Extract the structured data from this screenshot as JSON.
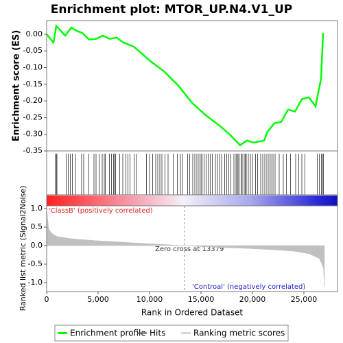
{
  "chart_data": {
    "type": "line",
    "title": "Enrichment plot: MTOR_UP.N4.V1_UP",
    "xlabel": "Rank in Ordered Dataset",
    "ylabel": "Enrichment score (ES)",
    "y2label": "Ranked list metric (Signal2Noise)",
    "xlim": [
      0,
      28267
    ],
    "xticks": [
      0,
      {
        "value": 5000,
        "label": "5,000"
      },
      {
        "value": 10000,
        "label": "10,000"
      },
      {
        "value": 15000,
        "label": "15,000"
      },
      {
        "value": 20000,
        "label": "20,000"
      },
      {
        "value": 25000,
        "label": "25,000"
      }
    ],
    "ylim": [
      -0.35,
      0.041
    ],
    "yticks": [
      {
        "value": 0,
        "label": "0.00"
      },
      -0.05,
      {
        "value": -0.1,
        "label": "-0.10"
      },
      -0.15,
      {
        "value": -0.2,
        "label": "-0.20"
      },
      -0.25,
      {
        "value": -0.3,
        "label": "-0.30"
      },
      -0.35
    ],
    "y2lim": [
      -1.24,
      1.074
    ],
    "y2ticks": [
      {
        "value": 1,
        "label": "1.0"
      },
      0.5,
      {
        "value": 0,
        "label": "0.0"
      },
      -0.5,
      {
        "value": -1,
        "label": "-1.0"
      }
    ],
    "zero_cross": 13379,
    "annotations": [
      "'ClassB' (positively correlated)",
      "Zero cross at 13379",
      "'Controal' (negatively correlated)"
    ],
    "series": [
      {
        "name": "Enrichment profile",
        "color": "#00ff00",
        "x": [
          0,
          667,
          933,
          1800,
          2400,
          2933,
          3467,
          4133,
          4800,
          5467,
          6133,
          6800,
          7467,
          8467,
          10133,
          11467,
          12800,
          14133,
          15467,
          16800,
          17933,
          18800,
          19467,
          20133,
          21133,
          21467,
          22133,
          22800,
          23467,
          24133,
          24800,
          25467,
          26133,
          26333,
          26667,
          26800,
          26867
        ],
        "values": [
          0,
          -0.025,
          0.025,
          -0.004,
          0.02,
          0.01,
          0.004,
          -0.016,
          -0.014,
          -0.004,
          -0.014,
          -0.01,
          -0.025,
          -0.037,
          -0.082,
          -0.113,
          -0.154,
          -0.206,
          -0.243,
          -0.274,
          -0.305,
          -0.333,
          -0.319,
          -0.325,
          -0.319,
          -0.292,
          -0.267,
          -0.263,
          -0.226,
          -0.232,
          -0.195,
          -0.189,
          -0.216,
          -0.185,
          -0.134,
          -0.041,
          0.004
        ]
      },
      {
        "name": "Hits",
        "color": "#555555",
        "x": [
          850,
          950,
          1000,
          1900,
          2100,
          2300,
          2500,
          2800,
          3400,
          3600,
          4100,
          4600,
          4800,
          5100,
          5400,
          5600,
          5700,
          6100,
          6300,
          6500,
          6600,
          6700,
          7100,
          7400,
          7700,
          7900,
          8100,
          8500,
          8700,
          9700,
          10000,
          10300,
          10600,
          10800,
          11000,
          11200,
          11500,
          11800,
          12300,
          12700,
          13000,
          13200,
          13700,
          13900,
          14200,
          14400,
          14600,
          14800,
          15000,
          15100,
          15300,
          15500,
          15700,
          15900,
          16100,
          16400,
          16600,
          16800,
          17000,
          17300,
          17500,
          17700,
          17900,
          18200,
          18400,
          18500,
          18600,
          18700,
          18900,
          19000,
          19200,
          19300,
          19400,
          19600,
          19800,
          20000,
          20300,
          20500,
          20800,
          21000,
          21200,
          21400,
          21600,
          21800,
          22000,
          22200,
          22600,
          23000,
          23300,
          23700,
          24200,
          24500,
          24800,
          25100,
          26300,
          26500,
          26700,
          26800,
          26900
        ]
      },
      {
        "name": "Ranking metric scores",
        "color": "#c0c0c0",
        "axis": "y2",
        "x": [
          0,
          200,
          500,
          1000,
          2000,
          3000,
          5000,
          7500,
          10000,
          13379,
          16000,
          19000,
          22000,
          24000,
          25500,
          26500,
          26900,
          27000
        ],
        "values": [
          1.0,
          0.45,
          0.33,
          0.25,
          0.2,
          0.17,
          0.13,
          0.09,
          0.05,
          0,
          -0.04,
          -0.07,
          -0.11,
          -0.15,
          -0.22,
          -0.35,
          -0.6,
          -1.1
        ]
      }
    ]
  }
}
